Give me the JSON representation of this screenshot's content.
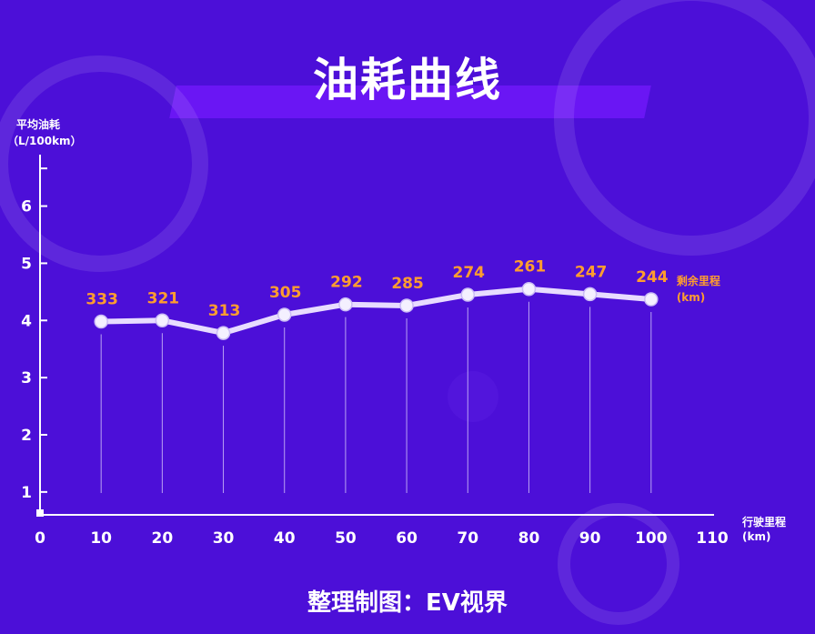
{
  "title": "油耗曲线",
  "credit": "整理制图：EV视界",
  "chart_data": {
    "type": "line",
    "title": "油耗曲线",
    "ylabel": [
      "平均油耗",
      "（L/100km）"
    ],
    "xlabel": [
      "行驶里程",
      "(km)"
    ],
    "x_ticks": [
      "0",
      "10",
      "20",
      "30",
      "40",
      "50",
      "60",
      "70",
      "80",
      "90",
      "100",
      "110"
    ],
    "y_ticks": [
      "1",
      "2",
      "3",
      "4",
      "5",
      "6"
    ],
    "xlim": [
      0,
      110
    ],
    "ylim": [
      0.6,
      6.9
    ],
    "x": [
      10,
      20,
      30,
      40,
      50,
      60,
      70,
      80,
      90,
      100
    ],
    "series": [
      {
        "values": [
          3.98,
          4.0,
          3.78,
          4.1,
          4.28,
          4.26,
          4.45,
          4.55,
          4.46,
          4.37
        ]
      }
    ],
    "remaining_range_label": [
      "剩余里程",
      "(km)"
    ],
    "remaining_range": [
      "333",
      "321",
      "313",
      "305",
      "292",
      "285",
      "274",
      "261",
      "247",
      "244"
    ],
    "grid": false,
    "colors": {
      "background": "#4c0fd8",
      "line": "#e8dcff",
      "marker": "#f4f0ff",
      "data_label": "#ff9d2f",
      "axis": "#ffffff",
      "drop_line": "#b9a2f3"
    }
  }
}
